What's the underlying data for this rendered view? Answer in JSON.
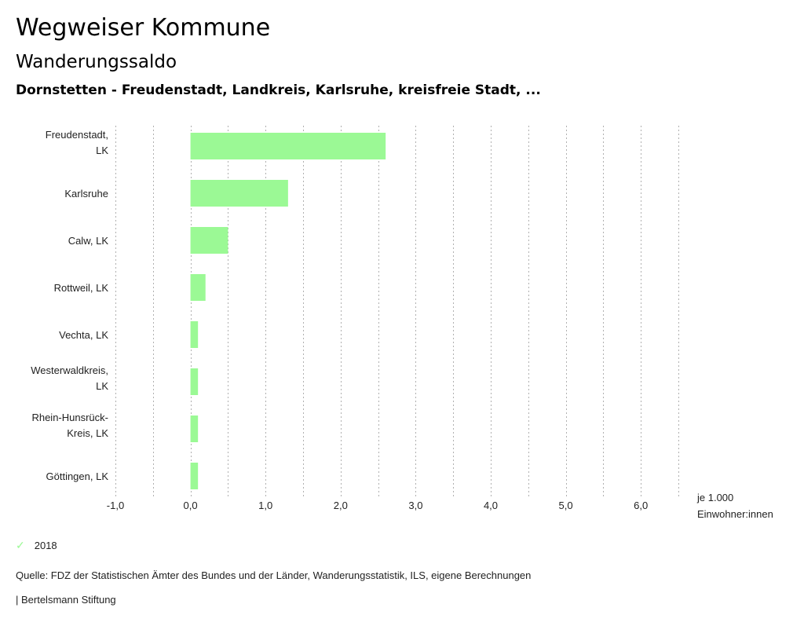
{
  "header": {
    "title": "Wegweiser Kommune",
    "subtitle": "Wanderungssaldo",
    "selection": "Dornstetten - Freudenstadt, Landkreis, Karlsruhe, kreisfreie Stadt, ..."
  },
  "chart_data": {
    "type": "bar",
    "orientation": "horizontal",
    "categories": [
      [
        "Freudenstadt,",
        "LK"
      ],
      [
        "Karlsruhe"
      ],
      [
        "Calw, LK"
      ],
      [
        "Rottweil, LK"
      ],
      [
        "Vechta, LK"
      ],
      [
        "Westerwaldkreis,",
        "LK"
      ],
      [
        "Rhein-Hunsrück-",
        "Kreis, LK"
      ],
      [
        "Göttingen, LK"
      ]
    ],
    "series": [
      {
        "name": "2018",
        "color": "#9bf995",
        "values": [
          2.6,
          1.3,
          0.5,
          0.2,
          0.1,
          0.1,
          0.1,
          0.1
        ]
      }
    ],
    "xlim": [
      -1.0,
      6.5
    ],
    "x_ticks": [
      -1.0,
      0.0,
      1.0,
      2.0,
      3.0,
      4.0,
      5.0,
      6.0
    ],
    "x_tick_labels": [
      "-1,0",
      "0,0",
      "1,0",
      "2,0",
      "3,0",
      "4,0",
      "5,0",
      "6,0"
    ],
    "grid_step": 0.5,
    "grid": true,
    "unit_label": [
      "je 1.000",
      "Einwohner:innen"
    ],
    "legend_position": "bottom-left"
  },
  "legend": {
    "items": [
      {
        "label": "2018",
        "icon": "check-icon",
        "color": "#9bf995"
      }
    ]
  },
  "footer": {
    "source": "Quelle: FDZ der Statistischen Ämter des Bundes und der Länder, Wanderungsstatistik, ILS, eigene Berechnungen",
    "credit": "| Bertelsmann Stiftung"
  }
}
